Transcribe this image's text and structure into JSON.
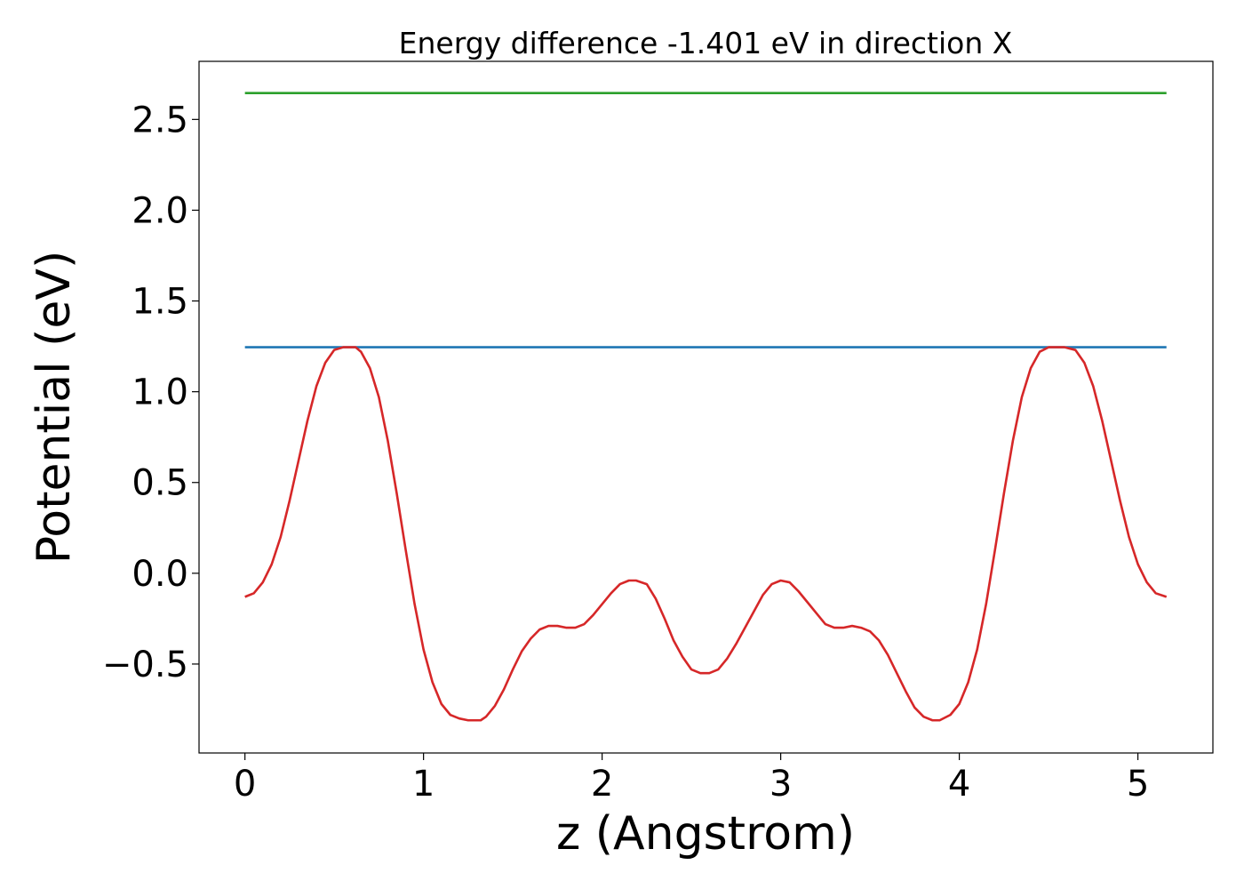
{
  "chart_data": {
    "type": "line",
    "title": "Energy difference -1.401 eV in direction X",
    "xlabel": "z (Angstrom)",
    "ylabel": "Potential (eV)",
    "xlim": [
      -0.257,
      5.42
    ],
    "ylim": [
      -0.99,
      2.82
    ],
    "xticks": [
      0,
      1,
      2,
      3,
      4,
      5
    ],
    "xtick_labels": [
      "0",
      "1",
      "2",
      "3",
      "4",
      "5"
    ],
    "yticks": [
      -0.5,
      0.0,
      0.5,
      1.0,
      1.5,
      2.0,
      2.5
    ],
    "ytick_labels": [
      "−0.5",
      "0.0",
      "0.5",
      "1.0",
      "1.5",
      "2.0",
      "2.5"
    ],
    "grid": false,
    "legend": false,
    "series": [
      {
        "color": "#2ca02c",
        "x": [
          0,
          5.16
        ],
        "y": [
          2.645,
          2.645
        ]
      },
      {
        "color": "#1f77b4",
        "x": [
          0,
          5.16
        ],
        "y": [
          1.245,
          1.245
        ]
      },
      {
        "color": "#d62728",
        "x": [
          0.0,
          0.05,
          0.1,
          0.15,
          0.2,
          0.25,
          0.3,
          0.35,
          0.4,
          0.45,
          0.5,
          0.55,
          0.6,
          0.62,
          0.65,
          0.7,
          0.75,
          0.8,
          0.85,
          0.9,
          0.95,
          1.0,
          1.05,
          1.1,
          1.15,
          1.2,
          1.25,
          1.3,
          1.32,
          1.35,
          1.4,
          1.45,
          1.5,
          1.55,
          1.6,
          1.65,
          1.7,
          1.75,
          1.8,
          1.85,
          1.9,
          1.95,
          2.0,
          2.05,
          2.1,
          2.15,
          2.19,
          2.25,
          2.3,
          2.35,
          2.4,
          2.45,
          2.5,
          2.55,
          2.6,
          2.65,
          2.7,
          2.75,
          2.8,
          2.85,
          2.9,
          2.95,
          3.0,
          3.05,
          3.1,
          3.15,
          3.2,
          3.25,
          3.3,
          3.35,
          3.4,
          3.45,
          3.5,
          3.55,
          3.6,
          3.65,
          3.7,
          3.75,
          3.8,
          3.85,
          3.89,
          3.95,
          4.0,
          4.05,
          4.1,
          4.15,
          4.2,
          4.25,
          4.3,
          4.35,
          4.4,
          4.45,
          4.5,
          4.55,
          4.59,
          4.65,
          4.7,
          4.75,
          4.8,
          4.85,
          4.9,
          4.95,
          5.0,
          5.05,
          5.1,
          5.16
        ],
        "y": [
          -0.13,
          -0.11,
          -0.05,
          0.05,
          0.2,
          0.4,
          0.62,
          0.84,
          1.03,
          1.16,
          1.23,
          1.245,
          1.245,
          1.245,
          1.22,
          1.13,
          0.97,
          0.73,
          0.44,
          0.13,
          -0.17,
          -0.42,
          -0.6,
          -0.72,
          -0.78,
          -0.8,
          -0.81,
          -0.81,
          -0.81,
          -0.79,
          -0.73,
          -0.64,
          -0.53,
          -0.43,
          -0.36,
          -0.31,
          -0.29,
          -0.29,
          -0.3,
          -0.3,
          -0.28,
          -0.23,
          -0.17,
          -0.11,
          -0.06,
          -0.04,
          -0.04,
          -0.06,
          -0.14,
          -0.25,
          -0.37,
          -0.46,
          -0.53,
          -0.55,
          -0.55,
          -0.53,
          -0.47,
          -0.39,
          -0.3,
          -0.21,
          -0.12,
          -0.06,
          -0.04,
          -0.05,
          -0.1,
          -0.16,
          -0.22,
          -0.28,
          -0.3,
          -0.3,
          -0.29,
          -0.3,
          -0.32,
          -0.37,
          -0.45,
          -0.55,
          -0.65,
          -0.74,
          -0.79,
          -0.81,
          -0.81,
          -0.78,
          -0.72,
          -0.6,
          -0.42,
          -0.17,
          0.13,
          0.44,
          0.73,
          0.97,
          1.13,
          1.22,
          1.245,
          1.245,
          1.245,
          1.23,
          1.16,
          1.03,
          0.84,
          0.62,
          0.4,
          0.2,
          0.05,
          -0.05,
          -0.11,
          -0.13
        ]
      }
    ]
  }
}
